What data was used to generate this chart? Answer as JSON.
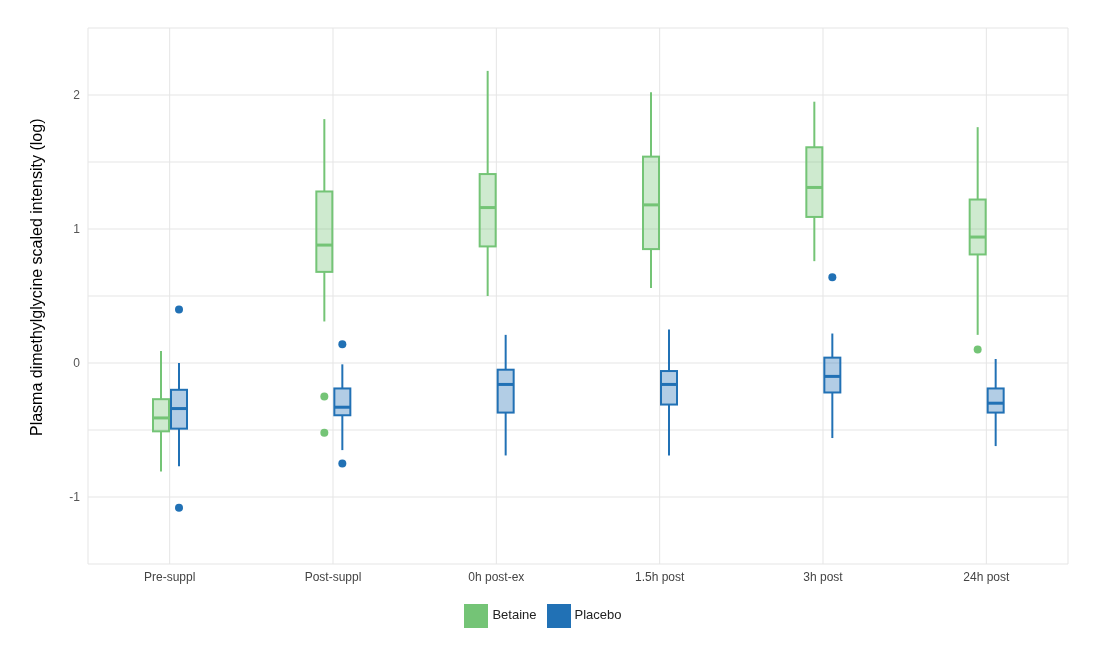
{
  "chart_data": {
    "type": "box",
    "ylabel": "Plasma dimethylglycine scaled intensity (log)",
    "categories": [
      "Pre-suppl",
      "Post-suppl",
      "0h post-ex",
      "1.5h post",
      "3h post",
      "24h post"
    ],
    "ylim": [
      -1.5,
      2.5
    ],
    "yticks": [
      {
        "value": -1.5,
        "label": null
      },
      -1,
      {
        "value": -0.5,
        "label": null
      },
      0,
      {
        "value": 0.5,
        "label": null
      },
      1,
      {
        "value": 1.5,
        "label": null
      },
      2,
      {
        "value": 2.5,
        "label": null
      }
    ],
    "grid": true,
    "legend": "bottom",
    "series": [
      {
        "name": "Betaine",
        "color": "#74c476",
        "boxes": [
          {
            "low": -0.81,
            "q1": -0.51,
            "median": -0.41,
            "q3": -0.27,
            "high": 0.09
          },
          {
            "low": 0.31,
            "q1": 0.68,
            "median": 0.88,
            "q3": 1.28,
            "high": 1.82,
            "outliers": [
              -0.25,
              -0.52
            ]
          },
          {
            "low": 0.5,
            "q1": 0.87,
            "median": 1.16,
            "q3": 1.41,
            "high": 2.18
          },
          {
            "low": 0.56,
            "q1": 0.85,
            "median": 1.18,
            "q3": 1.54,
            "high": 2.02
          },
          {
            "low": 0.76,
            "q1": 1.09,
            "median": 1.31,
            "q3": 1.61,
            "high": 1.95
          },
          {
            "low": 0.21,
            "q1": 0.81,
            "median": 0.94,
            "q3": 1.22,
            "high": 1.76,
            "outliers": [
              0.1
            ]
          }
        ]
      },
      {
        "name": "Placebo",
        "color": "#2171b5",
        "boxes": [
          {
            "low": -0.77,
            "q1": -0.49,
            "median": -0.34,
            "q3": -0.2,
            "high": 0,
            "outliers": [
              0.4,
              -1.08
            ]
          },
          {
            "low": -0.65,
            "q1": -0.39,
            "median": -0.33,
            "q3": -0.19,
            "high": -0.01,
            "outliers": [
              0.14,
              -0.75
            ]
          },
          {
            "low": -0.69,
            "q1": -0.37,
            "median": -0.16,
            "q3": -0.05,
            "high": 0.21
          },
          {
            "low": -0.69,
            "q1": -0.31,
            "median": -0.16,
            "q3": -0.06,
            "high": 0.25
          },
          {
            "low": -0.56,
            "q1": -0.22,
            "median": -0.1,
            "q3": 0.04,
            "high": 0.22,
            "outliers": [
              0.64
            ]
          },
          {
            "low": -0.62,
            "q1": -0.37,
            "median": -0.3,
            "q3": -0.19,
            "high": 0.03
          }
        ]
      }
    ]
  }
}
